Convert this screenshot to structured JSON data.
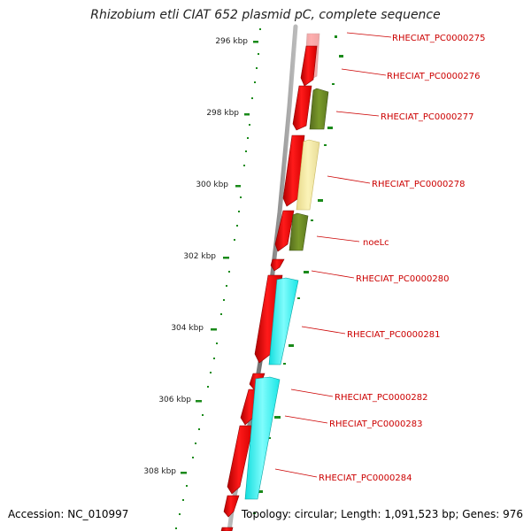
{
  "title": "Rhizobium etli CIAT 652 plasmid pC, complete sequence",
  "accession": "Accession: NC_010997",
  "stats": "Topology: circular; Length: 1,091,523 bp; Genes: 976",
  "colors": {
    "forward_cds": "#ff0000",
    "reverse_cds_olive": "#6b8e23",
    "reverse_cds_khaki": "#f0e68c",
    "reverse_cds_cyan": "#00ffff",
    "backbone": "#888888",
    "ticks": "#1a8a1a",
    "gene_labels": "#cc0000"
  },
  "scale": {
    "unit": "kbp",
    "labels": [
      "296 kbp",
      "298 kbp",
      "300 kbp",
      "302 kbp",
      "304 kbp",
      "306 kbp",
      "308 kbp"
    ]
  },
  "genes": [
    {
      "label": "RHECIAT_PC0000275"
    },
    {
      "label": "RHECIAT_PC0000276"
    },
    {
      "label": "RHECIAT_PC0000277"
    },
    {
      "label": "RHECIAT_PC0000278"
    },
    {
      "label": "noeLc"
    },
    {
      "label": "RHECIAT_PC0000280"
    },
    {
      "label": "RHECIAT_PC0000281"
    },
    {
      "label": "RHECIAT_PC0000282"
    },
    {
      "label": "RHECIAT_PC0000283"
    },
    {
      "label": "RHECIAT_PC0000284"
    }
  ]
}
